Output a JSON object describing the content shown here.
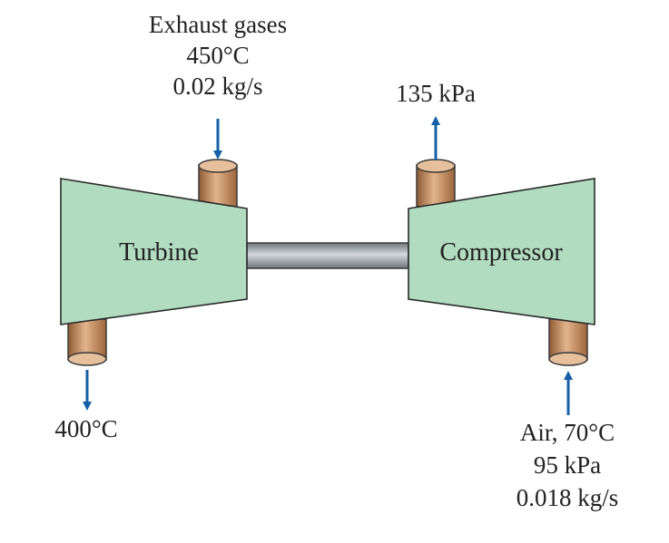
{
  "turbine": {
    "label": "Turbine",
    "inlet": {
      "line1": "Exhaust gases",
      "line2": "450°C",
      "line3": "0.02 kg/s"
    },
    "outlet": {
      "temp": "400°C"
    }
  },
  "compressor": {
    "label": "Compressor",
    "outlet": {
      "pressure": "135 kPa"
    },
    "inlet": {
      "line1": "Air, 70°C",
      "line2": "95 kPa",
      "line3": "0.018 kg/s"
    }
  },
  "colors": {
    "body_fill": "#b2dcc0",
    "body_stroke": "#2a2a2a",
    "pipe": "#c98a5a",
    "shaft": "#9da3a8",
    "arrow": "#1560a8"
  }
}
